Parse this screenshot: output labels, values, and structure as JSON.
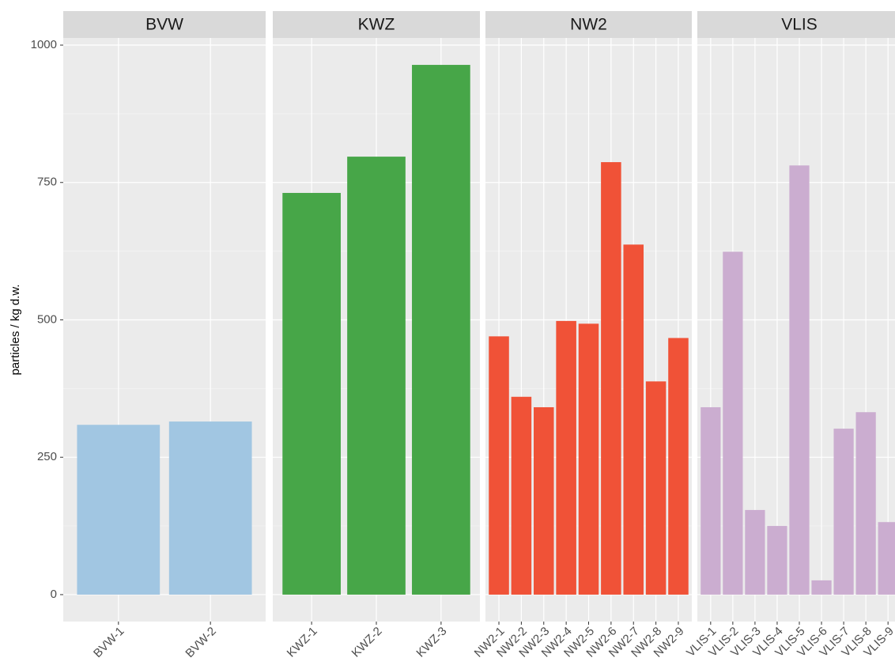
{
  "chart_data": [
    {
      "type": "bar",
      "title": "BVW",
      "ylabel": "particles / kg d.w.",
      "categories": [
        "BVW-1",
        "BVW-2"
      ],
      "values": [
        309,
        315
      ],
      "color": "#a1c6e2",
      "ylim": [
        -49,
        1013
      ],
      "yticks": [
        0,
        250,
        500,
        750,
        1000
      ],
      "grid": true
    },
    {
      "type": "bar",
      "title": "KWZ",
      "categories": [
        "KWZ-1",
        "KWZ-2",
        "KWZ-3"
      ],
      "values": [
        731,
        797,
        964
      ],
      "color": "#47a648",
      "ylim": [
        -49,
        1013
      ],
      "yticks": [
        0,
        250,
        500,
        750,
        1000
      ],
      "grid": true
    },
    {
      "type": "bar",
      "title": "NW2",
      "categories": [
        "NW2-1",
        "NW2-2",
        "NW2-3",
        "NW2-4",
        "NW2-5",
        "NW2-6",
        "NW2-7",
        "NW2-8",
        "NW2-9"
      ],
      "values": [
        470,
        360,
        341,
        498,
        493,
        787,
        637,
        388,
        467
      ],
      "color": "#f05237",
      "ylim": [
        -49,
        1013
      ],
      "yticks": [
        0,
        250,
        500,
        750,
        1000
      ],
      "grid": true
    },
    {
      "type": "bar",
      "title": "VLIS",
      "categories": [
        "VLIS-1",
        "VLIS-2",
        "VLIS-3",
        "VLIS-4",
        "VLIS-5",
        "VLIS-6",
        "VLIS-7",
        "VLIS-8",
        "VLIS-9"
      ],
      "values": [
        341,
        624,
        154,
        125,
        781,
        26,
        302,
        332,
        132
      ],
      "color": "#cbadd0",
      "ylim": [
        -49,
        1013
      ],
      "yticks": [
        0,
        250,
        500,
        750,
        1000
      ],
      "grid": true
    }
  ]
}
